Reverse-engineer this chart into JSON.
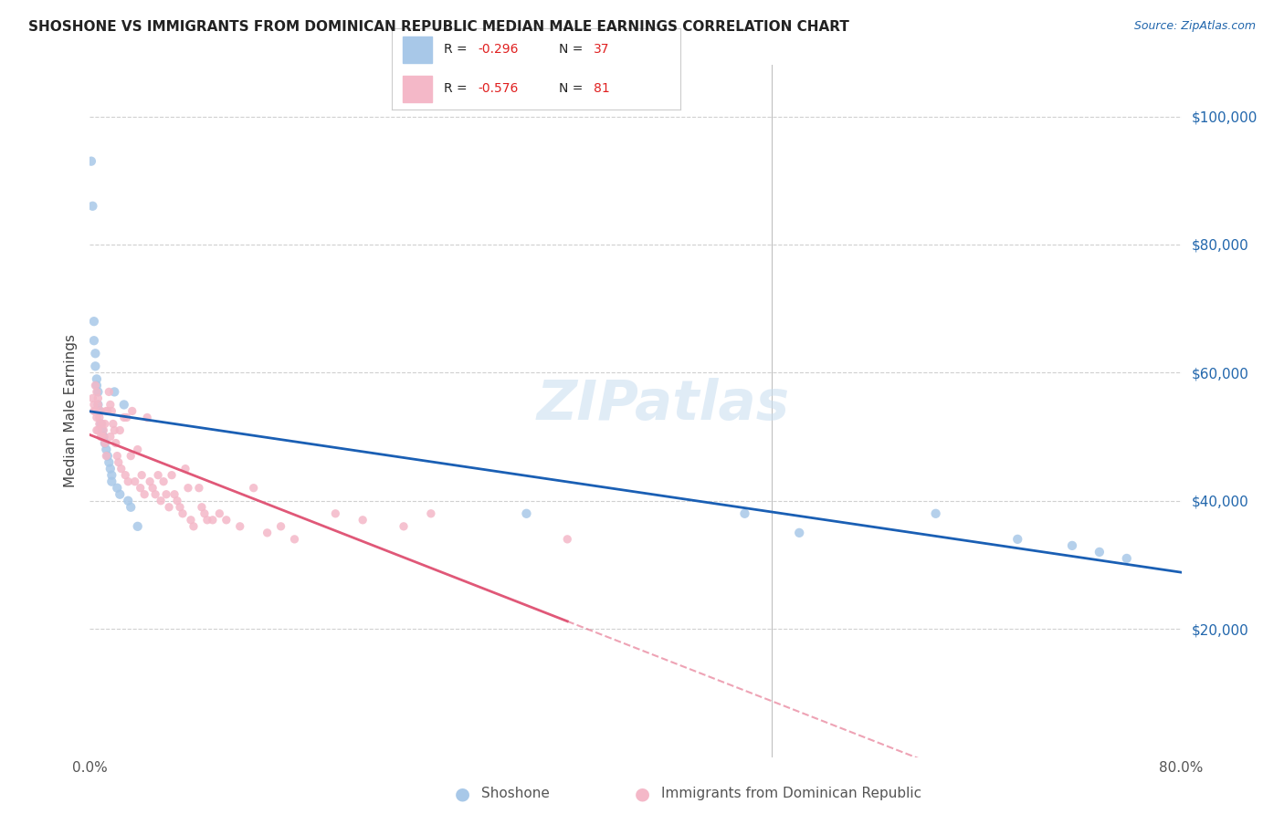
{
  "title": "SHOSHONE VS IMMIGRANTS FROM DOMINICAN REPUBLIC MEDIAN MALE EARNINGS CORRELATION CHART",
  "source": "Source: ZipAtlas.com",
  "ylabel": "Median Male Earnings",
  "color_blue": "#a8c8e8",
  "color_pink": "#f4b8c8",
  "line_blue": "#1a5fb4",
  "line_pink": "#e05878",
  "watermark": "ZIPatlas",
  "shoshone_x": [
    0.001,
    0.002,
    0.003,
    0.003,
    0.004,
    0.004,
    0.005,
    0.005,
    0.006,
    0.006,
    0.007,
    0.008,
    0.009,
    0.01,
    0.01,
    0.011,
    0.012,
    0.013,
    0.014,
    0.015,
    0.016,
    0.016,
    0.018,
    0.02,
    0.022,
    0.025,
    0.028,
    0.03,
    0.035,
    0.32,
    0.48,
    0.52,
    0.62,
    0.68,
    0.72,
    0.74,
    0.76
  ],
  "shoshone_y": [
    93000,
    86000,
    68000,
    65000,
    63000,
    61000,
    59000,
    58000,
    57000,
    55000,
    54000,
    52000,
    51000,
    50000,
    50000,
    49000,
    48000,
    47000,
    46000,
    45000,
    44000,
    43000,
    57000,
    42000,
    41000,
    55000,
    40000,
    39000,
    36000,
    38000,
    38000,
    35000,
    38000,
    34000,
    33000,
    32000,
    31000
  ],
  "dominican_x": [
    0.002,
    0.003,
    0.003,
    0.004,
    0.004,
    0.005,
    0.005,
    0.005,
    0.006,
    0.006,
    0.006,
    0.007,
    0.007,
    0.008,
    0.008,
    0.009,
    0.009,
    0.01,
    0.01,
    0.011,
    0.011,
    0.012,
    0.012,
    0.013,
    0.014,
    0.015,
    0.015,
    0.016,
    0.017,
    0.018,
    0.019,
    0.02,
    0.021,
    0.022,
    0.023,
    0.025,
    0.026,
    0.027,
    0.028,
    0.03,
    0.031,
    0.033,
    0.035,
    0.037,
    0.038,
    0.04,
    0.042,
    0.044,
    0.046,
    0.048,
    0.05,
    0.052,
    0.054,
    0.056,
    0.058,
    0.06,
    0.062,
    0.064,
    0.066,
    0.068,
    0.07,
    0.072,
    0.074,
    0.076,
    0.08,
    0.082,
    0.084,
    0.086,
    0.09,
    0.095,
    0.1,
    0.11,
    0.12,
    0.13,
    0.14,
    0.15,
    0.18,
    0.2,
    0.23,
    0.25,
    0.35
  ],
  "dominican_y": [
    56000,
    55000,
    54000,
    58000,
    54000,
    53000,
    57000,
    51000,
    56000,
    55000,
    51000,
    53000,
    52000,
    54000,
    50000,
    52000,
    50000,
    51000,
    50000,
    49000,
    52000,
    54000,
    47000,
    54000,
    57000,
    50000,
    55000,
    54000,
    52000,
    51000,
    49000,
    47000,
    46000,
    51000,
    45000,
    53000,
    44000,
    53000,
    43000,
    47000,
    54000,
    43000,
    48000,
    42000,
    44000,
    41000,
    53000,
    43000,
    42000,
    41000,
    44000,
    40000,
    43000,
    41000,
    39000,
    44000,
    41000,
    40000,
    39000,
    38000,
    45000,
    42000,
    37000,
    36000,
    42000,
    39000,
    38000,
    37000,
    37000,
    38000,
    37000,
    36000,
    42000,
    35000,
    36000,
    34000,
    38000,
    37000,
    36000,
    38000,
    34000
  ],
  "xlim": [
    0.0,
    0.8
  ],
  "ylim": [
    0,
    108000
  ],
  "yticks": [
    20000,
    40000,
    60000,
    80000,
    100000
  ],
  "ytick_labels": [
    "$20,000",
    "$40,000",
    "$60,000",
    "$80,000",
    "$100,000"
  ],
  "xticks": [
    0.0,
    0.1,
    0.2,
    0.3,
    0.4,
    0.5,
    0.6,
    0.7,
    0.8
  ],
  "xtick_labels_show": {
    "0.0": "0.0%",
    "0.8": "80.0%"
  }
}
